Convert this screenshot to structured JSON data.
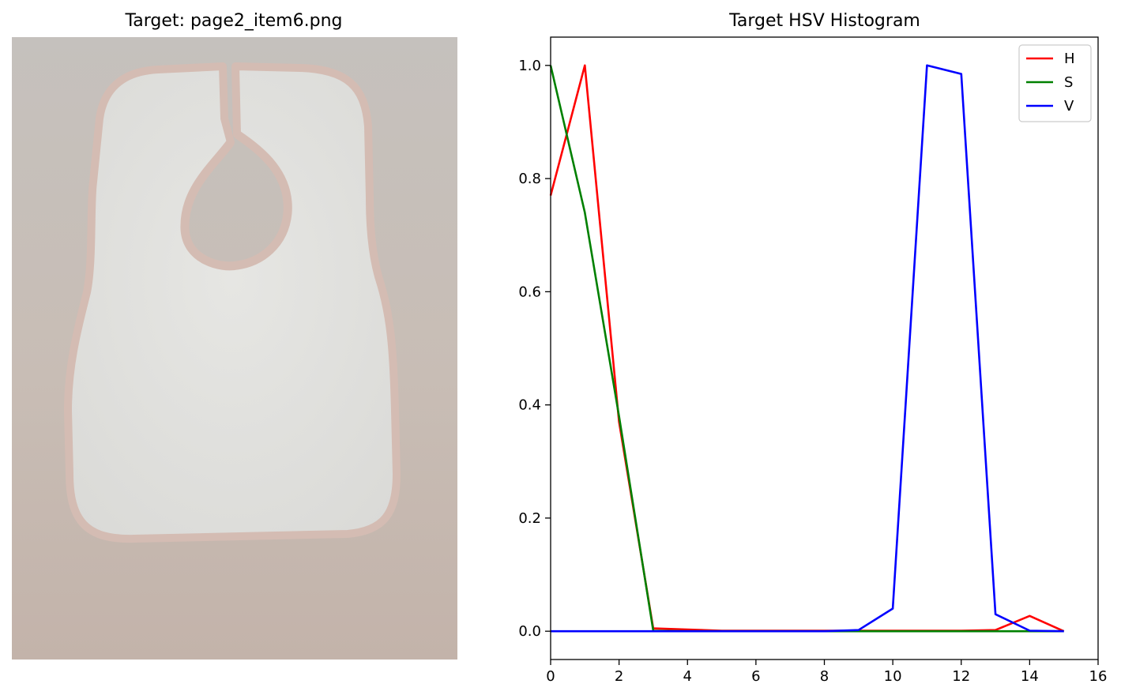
{
  "image_panel": {
    "title": "Target: page2_item6.png",
    "bg_color": "#c8bbb3",
    "bib_color": "#e2e2df",
    "trim_color": "#d4bcb3"
  },
  "chart_data": {
    "type": "line",
    "title": "Target HSV Histogram",
    "xlabel": "",
    "ylabel": "",
    "xlim": [
      0,
      16
    ],
    "ylim": [
      -0.05,
      1.05
    ],
    "x_ticks": [
      0,
      2,
      4,
      6,
      8,
      10,
      12,
      14,
      16
    ],
    "y_ticks": [
      0.0,
      0.2,
      0.4,
      0.6,
      0.8,
      1.0
    ],
    "x_tick_labels": [
      "0",
      "2",
      "4",
      "6",
      "8",
      "10",
      "12",
      "14",
      "16"
    ],
    "y_tick_labels": [
      "0.0",
      "0.2",
      "0.4",
      "0.6",
      "0.8",
      "1.0"
    ],
    "grid": false,
    "legend_position": "top-right",
    "x": [
      0,
      1,
      2,
      3,
      4,
      5,
      6,
      7,
      8,
      9,
      10,
      11,
      12,
      13,
      14,
      15
    ],
    "series": [
      {
        "name": "H",
        "color": "#ff0000",
        "values": [
          0.77,
          1.0,
          0.37,
          0.005,
          0.003,
          0.001,
          0.001,
          0.001,
          0.001,
          0.001,
          0.001,
          0.001,
          0.001,
          0.002,
          0.027,
          0.0
        ]
      },
      {
        "name": "S",
        "color": "#008000",
        "values": [
          1.0,
          0.74,
          0.38,
          0.001,
          0.0,
          0.0,
          0.0,
          0.0,
          0.0,
          0.0,
          0.0,
          0.0,
          0.0,
          0.0,
          0.0,
          0.0
        ]
      },
      {
        "name": "V",
        "color": "#0000ff",
        "values": [
          0.0,
          0.0,
          0.0,
          0.0,
          0.0,
          0.0,
          0.0,
          0.0,
          0.0,
          0.002,
          0.04,
          1.0,
          0.985,
          0.03,
          0.001,
          0.0
        ]
      }
    ]
  }
}
